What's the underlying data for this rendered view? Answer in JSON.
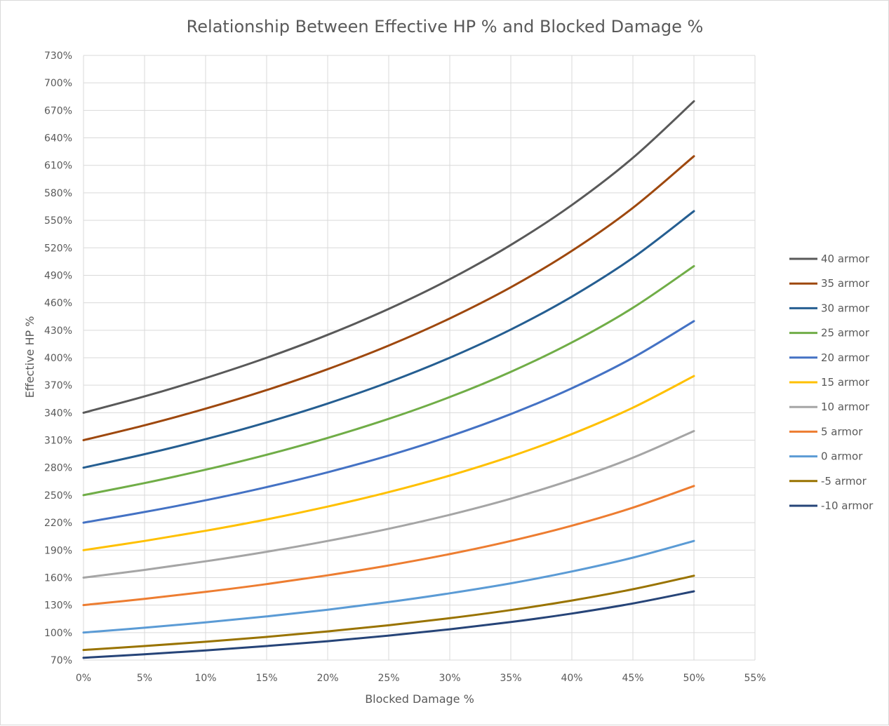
{
  "chart_data": {
    "type": "line",
    "title": "Relationship Between Effective HP % and Blocked Damage %",
    "xlabel": "Blocked Damage %",
    "ylabel": "Effective HP %",
    "xlim": [
      0,
      55
    ],
    "ylim": [
      70,
      730
    ],
    "x_ticks": [
      0,
      5,
      10,
      15,
      20,
      25,
      30,
      35,
      40,
      45,
      50,
      55
    ],
    "x_tick_labels": [
      "0%",
      "5%",
      "10%",
      "15%",
      "20%",
      "25%",
      "30%",
      "35%",
      "40%",
      "45%",
      "50%",
      "55%"
    ],
    "y_ticks": [
      70,
      100,
      130,
      160,
      190,
      220,
      250,
      280,
      310,
      340,
      370,
      400,
      430,
      460,
      490,
      520,
      550,
      580,
      610,
      640,
      670,
      700,
      730
    ],
    "y_tick_labels": [
      "70%",
      "100%",
      "130%",
      "160%",
      "190%",
      "220%",
      "250%",
      "280%",
      "310%",
      "340%",
      "370%",
      "400%",
      "430%",
      "460%",
      "490%",
      "520%",
      "550%",
      "580%",
      "610%",
      "640%",
      "670%",
      "700%",
      "730%"
    ],
    "grid": true,
    "legend_position": "right",
    "x": [
      0,
      5,
      10,
      15,
      20,
      25,
      30,
      35,
      40,
      45,
      50
    ],
    "series": [
      {
        "name": "40 armor",
        "color": "#595959",
        "values": [
          340,
          357.8,
          377.8,
          400,
          425,
          453.3,
          485.7,
          523.1,
          566.7,
          618.2,
          680
        ]
      },
      {
        "name": "35 armor",
        "color": "#9e480e",
        "values": [
          310,
          326.3,
          344.4,
          364.7,
          387.5,
          413.3,
          442.9,
          476.9,
          516.7,
          563.6,
          620
        ]
      },
      {
        "name": "30 armor",
        "color": "#255e91",
        "values": [
          280,
          294.7,
          311.1,
          329.4,
          350,
          373.3,
          400,
          430.8,
          466.7,
          509.1,
          560
        ]
      },
      {
        "name": "25 armor",
        "color": "#70ad47",
        "values": [
          250,
          263.2,
          277.8,
          294.1,
          312.5,
          333.3,
          357.1,
          384.6,
          416.7,
          454.5,
          500
        ]
      },
      {
        "name": "20 armor",
        "color": "#4472c4",
        "values": [
          220,
          231.6,
          244.4,
          258.8,
          275,
          293.3,
          314.3,
          338.5,
          366.7,
          400,
          440
        ]
      },
      {
        "name": "15 armor",
        "color": "#ffc000",
        "values": [
          190,
          200,
          211.1,
          223.5,
          237.5,
          253.3,
          271.4,
          292.3,
          316.7,
          345.5,
          380
        ]
      },
      {
        "name": "10 armor",
        "color": "#a5a5a5",
        "values": [
          160,
          168.4,
          177.8,
          188.2,
          200,
          213.3,
          228.6,
          246.2,
          266.7,
          290.9,
          320
        ]
      },
      {
        "name": "5 armor",
        "color": "#ed7d31",
        "values": [
          130,
          136.8,
          144.4,
          152.9,
          162.5,
          173.3,
          185.7,
          200,
          216.7,
          236.4,
          260
        ]
      },
      {
        "name": "0 armor",
        "color": "#5b9bd5",
        "values": [
          100,
          105.3,
          111.1,
          117.6,
          125,
          133.3,
          142.9,
          153.8,
          166.7,
          181.8,
          200
        ]
      },
      {
        "name": "-5 armor",
        "color": "#997300",
        "values": [
          81,
          85.3,
          90,
          95.3,
          101.3,
          108,
          115.7,
          124.6,
          135,
          147.3,
          162
        ]
      },
      {
        "name": "-10 armor",
        "color": "#264478",
        "values": [
          72.5,
          76.3,
          80.6,
          85.3,
          90.6,
          96.7,
          103.6,
          111.5,
          120.8,
          131.8,
          145
        ]
      }
    ]
  }
}
